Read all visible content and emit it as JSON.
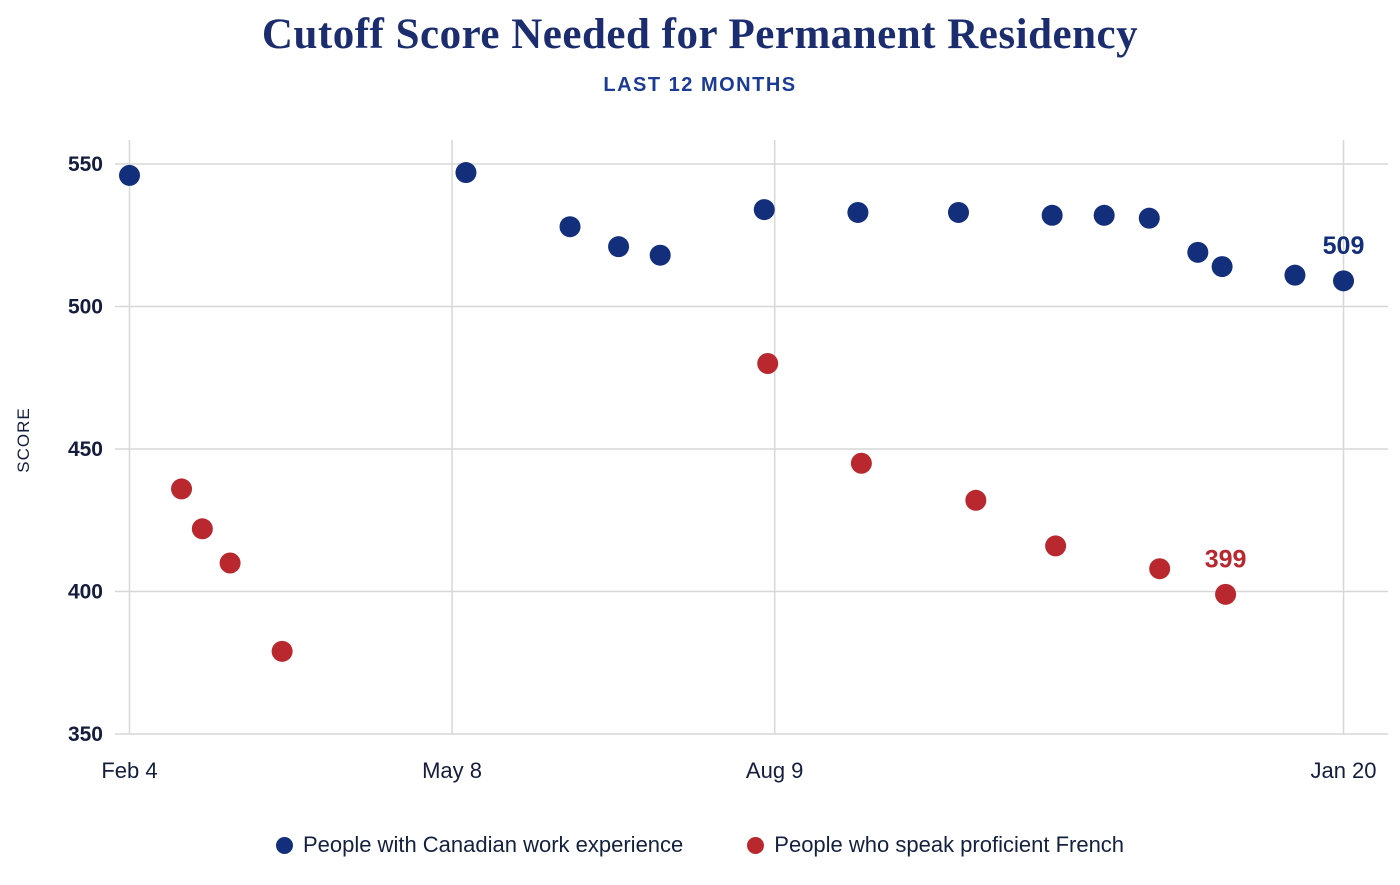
{
  "header": {
    "title": "Cutoff Score Needed for Permanent Residency",
    "subtitle": "LAST 12 MONTHS"
  },
  "chart_data": {
    "type": "scatter",
    "title": "Cutoff Score Needed for Permanent Residency",
    "subtitle": "LAST 12 MONTHS",
    "ylabel": "SCORE",
    "xlabel": "",
    "grid": true,
    "legend_position": "bottom",
    "ylim": [
      350,
      560
    ],
    "y_ticks": [
      350,
      400,
      450,
      500,
      550
    ],
    "x_unit": "days since Feb 4",
    "x_ticks": [
      {
        "day": 0,
        "label": "Feb 4"
      },
      {
        "day": 93,
        "label": "May 8"
      },
      {
        "day": 186,
        "label": "Aug 9"
      },
      {
        "day": 350,
        "label": "Jan 20"
      }
    ],
    "series": [
      {
        "name": "People with Canadian work experience",
        "color": "#132e7b",
        "points": [
          {
            "day": 0,
            "score": 546
          },
          {
            "day": 97,
            "score": 547
          },
          {
            "day": 127,
            "score": 528
          },
          {
            "day": 141,
            "score": 521
          },
          {
            "day": 153,
            "score": 518
          },
          {
            "day": 183,
            "score": 534
          },
          {
            "day": 210,
            "score": 533
          },
          {
            "day": 239,
            "score": 533
          },
          {
            "day": 266,
            "score": 532
          },
          {
            "day": 281,
            "score": 532
          },
          {
            "day": 294,
            "score": 531
          },
          {
            "day": 308,
            "score": 519
          },
          {
            "day": 315,
            "score": 514
          },
          {
            "day": 336,
            "score": 511
          },
          {
            "day": 350,
            "score": 509,
            "label": "509"
          }
        ]
      },
      {
        "name": "People who speak proficient French",
        "color": "#b8282e",
        "points": [
          {
            "day": 15,
            "score": 436
          },
          {
            "day": 21,
            "score": 422
          },
          {
            "day": 29,
            "score": 410
          },
          {
            "day": 44,
            "score": 379
          },
          {
            "day": 184,
            "score": 480
          },
          {
            "day": 211,
            "score": 445
          },
          {
            "day": 244,
            "score": 432
          },
          {
            "day": 267,
            "score": 416
          },
          {
            "day": 297,
            "score": 408
          },
          {
            "day": 316,
            "score": 399,
            "label": "399"
          }
        ]
      }
    ],
    "colors": {
      "title": "#1b2d6e",
      "subtitle": "#1c3c94",
      "axis_text": "#141d3d",
      "gridline": "#d7d7d7",
      "background": "#ffffff"
    }
  }
}
